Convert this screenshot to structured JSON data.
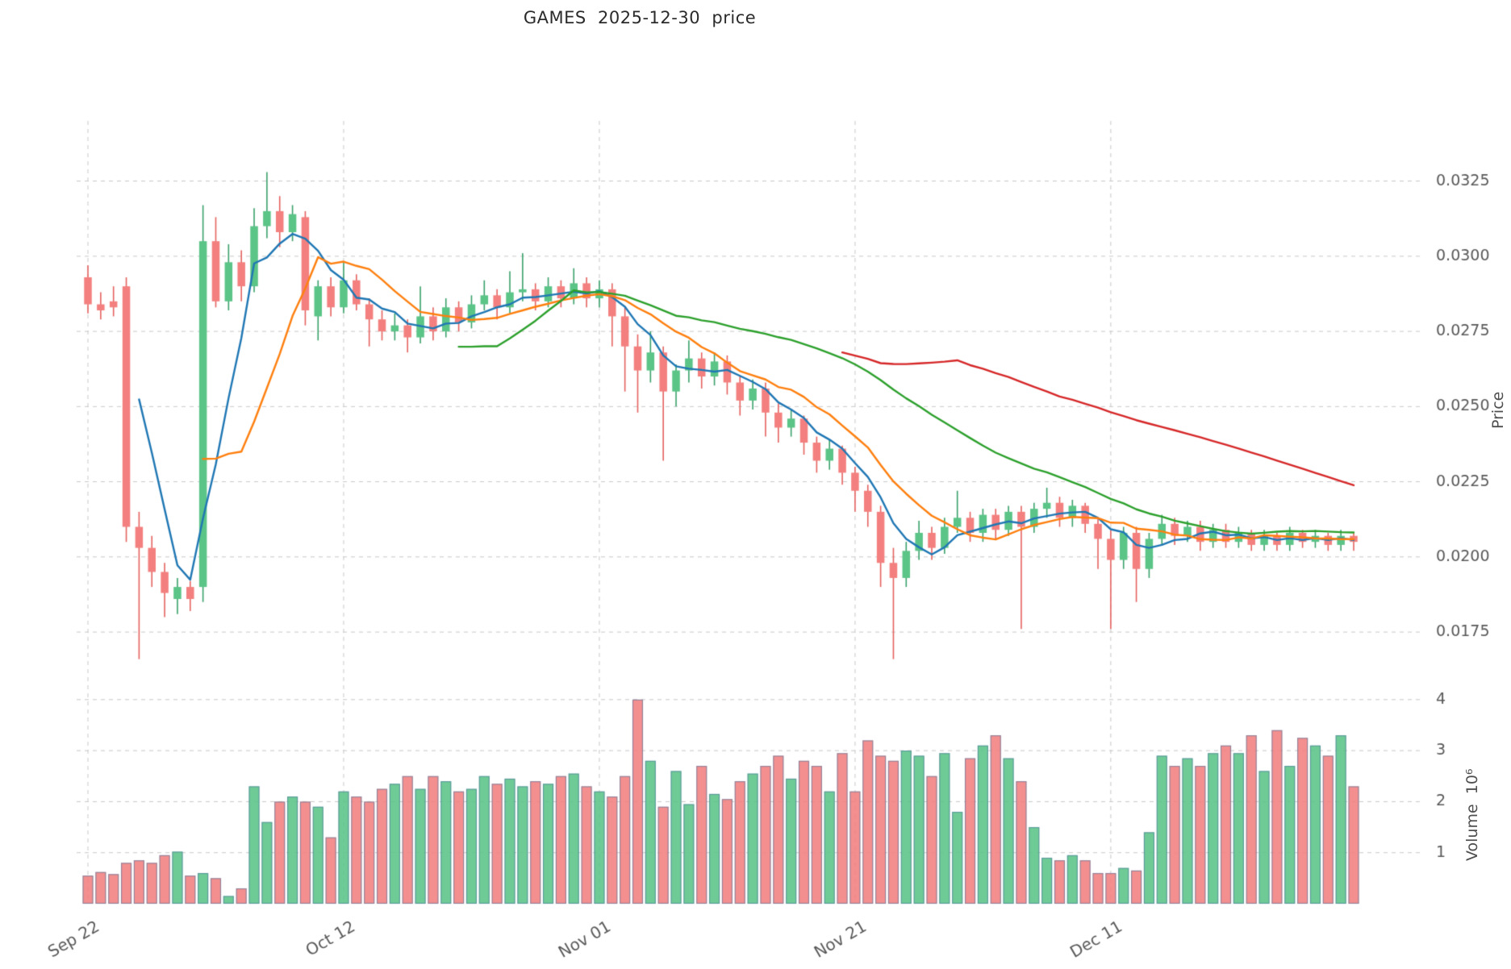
{
  "title": "GAMES  2025-12-30  price",
  "chart_data": {
    "type": "candlestick",
    "title": "GAMES  2025-12-30  price",
    "panels": [
      "price",
      "volume"
    ],
    "grid": "dashed",
    "ylabel_price": "Price",
    "ylabel_volume": "Volume  10⁶",
    "price_ticks": [
      0.0175,
      0.02,
      0.0225,
      0.025,
      0.0275,
      0.03,
      0.0325
    ],
    "price_ylim": [
      0.016,
      0.0345
    ],
    "volume_ticks": [
      1,
      2,
      3,
      4
    ],
    "volume_ylim": [
      0,
      4.25
    ],
    "x_tick_labels": [
      "Sep 22",
      "Oct 12",
      "Nov 01",
      "Nov 21",
      "Dec 11"
    ],
    "x_tick_indices": [
      0,
      20,
      40,
      60,
      80
    ],
    "ma_periods": [
      5,
      10,
      30,
      60
    ],
    "ma_colors": [
      "#1f77b4",
      "#ff7f0e",
      "#2ca02c",
      "#d62728"
    ],
    "up_fill": "#5bc487",
    "down_fill": "#f3807f",
    "up_wick": "#3aa26b",
    "down_wick": "#e5625f",
    "bar_edge": "#49759c",
    "grid_color": "#c9c9c9",
    "tick_color": "#595959",
    "ohlc": [
      [
        0.0293,
        0.0297,
        0.0281,
        0.0284
      ],
      [
        0.0284,
        0.0288,
        0.0279,
        0.0282
      ],
      [
        0.0285,
        0.029,
        0.028,
        0.0283
      ],
      [
        0.029,
        0.0293,
        0.0205,
        0.021
      ],
      [
        0.021,
        0.0215,
        0.0166,
        0.0203
      ],
      [
        0.0203,
        0.0207,
        0.019,
        0.0195
      ],
      [
        0.0195,
        0.0198,
        0.018,
        0.0188
      ],
      [
        0.0186,
        0.0193,
        0.0181,
        0.019
      ],
      [
        0.019,
        0.0192,
        0.0182,
        0.0186
      ],
      [
        0.019,
        0.0317,
        0.0185,
        0.0305
      ],
      [
        0.0305,
        0.0313,
        0.0283,
        0.0285
      ],
      [
        0.0285,
        0.0304,
        0.0282,
        0.0298
      ],
      [
        0.0298,
        0.0302,
        0.0285,
        0.029
      ],
      [
        0.029,
        0.0316,
        0.0288,
        0.031
      ],
      [
        0.031,
        0.0328,
        0.0306,
        0.0315
      ],
      [
        0.0315,
        0.032,
        0.0303,
        0.0308
      ],
      [
        0.0308,
        0.0317,
        0.0305,
        0.0314
      ],
      [
        0.0313,
        0.0315,
        0.0277,
        0.0282
      ],
      [
        0.028,
        0.0292,
        0.0272,
        0.029
      ],
      [
        0.029,
        0.0293,
        0.028,
        0.0283
      ],
      [
        0.0283,
        0.0298,
        0.0281,
        0.0292
      ],
      [
        0.0292,
        0.0294,
        0.0282,
        0.0284
      ],
      [
        0.0284,
        0.0286,
        0.027,
        0.0279
      ],
      [
        0.0279,
        0.0282,
        0.0272,
        0.0275
      ],
      [
        0.0275,
        0.0281,
        0.0272,
        0.0277
      ],
      [
        0.0277,
        0.0279,
        0.0268,
        0.0273
      ],
      [
        0.0273,
        0.029,
        0.0271,
        0.028
      ],
      [
        0.028,
        0.0283,
        0.0272,
        0.0275
      ],
      [
        0.0275,
        0.0286,
        0.0273,
        0.0283
      ],
      [
        0.0283,
        0.0285,
        0.0275,
        0.0278
      ],
      [
        0.0278,
        0.0287,
        0.0276,
        0.0284
      ],
      [
        0.0284,
        0.0292,
        0.0282,
        0.0287
      ],
      [
        0.0287,
        0.0289,
        0.0279,
        0.0283
      ],
      [
        0.0283,
        0.0295,
        0.0281,
        0.0288
      ],
      [
        0.0288,
        0.0301,
        0.0285,
        0.0289
      ],
      [
        0.0289,
        0.0291,
        0.0282,
        0.0285
      ],
      [
        0.0285,
        0.0293,
        0.0283,
        0.029
      ],
      [
        0.029,
        0.0292,
        0.0283,
        0.0286
      ],
      [
        0.0286,
        0.0296,
        0.0284,
        0.0291
      ],
      [
        0.0291,
        0.0293,
        0.0283,
        0.0286
      ],
      [
        0.0286,
        0.0292,
        0.0283,
        0.0289
      ],
      [
        0.0289,
        0.0291,
        0.027,
        0.028
      ],
      [
        0.028,
        0.0283,
        0.0255,
        0.027
      ],
      [
        0.027,
        0.0274,
        0.0248,
        0.0262
      ],
      [
        0.0262,
        0.0275,
        0.0258,
        0.0268
      ],
      [
        0.0268,
        0.027,
        0.0232,
        0.0255
      ],
      [
        0.0255,
        0.0264,
        0.025,
        0.0262
      ],
      [
        0.0262,
        0.0272,
        0.0258,
        0.0266
      ],
      [
        0.0266,
        0.0268,
        0.0256,
        0.026
      ],
      [
        0.026,
        0.0268,
        0.0257,
        0.0265
      ],
      [
        0.0265,
        0.0267,
        0.0254,
        0.0258
      ],
      [
        0.0258,
        0.026,
        0.0247,
        0.0252
      ],
      [
        0.0252,
        0.0259,
        0.0249,
        0.0256
      ],
      [
        0.0256,
        0.0258,
        0.024,
        0.0248
      ],
      [
        0.0248,
        0.0251,
        0.0238,
        0.0243
      ],
      [
        0.0243,
        0.0249,
        0.024,
        0.0246
      ],
      [
        0.0246,
        0.0247,
        0.0234,
        0.0238
      ],
      [
        0.0238,
        0.024,
        0.0228,
        0.0232
      ],
      [
        0.0232,
        0.0239,
        0.0229,
        0.0236
      ],
      [
        0.0236,
        0.0237,
        0.0224,
        0.0228
      ],
      [
        0.0228,
        0.023,
        0.0215,
        0.0222
      ],
      [
        0.0222,
        0.0224,
        0.021,
        0.0215
      ],
      [
        0.0215,
        0.0217,
        0.019,
        0.0198
      ],
      [
        0.0198,
        0.0203,
        0.0166,
        0.0193
      ],
      [
        0.0193,
        0.0205,
        0.019,
        0.0202
      ],
      [
        0.0202,
        0.0212,
        0.0199,
        0.0208
      ],
      [
        0.0208,
        0.021,
        0.0199,
        0.0203
      ],
      [
        0.0203,
        0.0213,
        0.0201,
        0.021
      ],
      [
        0.021,
        0.0222,
        0.0208,
        0.0213
      ],
      [
        0.0213,
        0.0215,
        0.0205,
        0.0208
      ],
      [
        0.0208,
        0.0216,
        0.0205,
        0.0214
      ],
      [
        0.0214,
        0.0216,
        0.0206,
        0.0209
      ],
      [
        0.0209,
        0.0217,
        0.0207,
        0.0215
      ],
      [
        0.0215,
        0.0217,
        0.0176,
        0.021
      ],
      [
        0.021,
        0.0218,
        0.0208,
        0.0216
      ],
      [
        0.0216,
        0.0223,
        0.0213,
        0.0218
      ],
      [
        0.0218,
        0.022,
        0.021,
        0.0213
      ],
      [
        0.0213,
        0.0219,
        0.021,
        0.0217
      ],
      [
        0.0217,
        0.0218,
        0.0208,
        0.0211
      ],
      [
        0.0211,
        0.0213,
        0.0196,
        0.0206
      ],
      [
        0.0206,
        0.0209,
        0.0176,
        0.0199
      ],
      [
        0.0199,
        0.021,
        0.0196,
        0.0208
      ],
      [
        0.0208,
        0.021,
        0.0185,
        0.0196
      ],
      [
        0.0196,
        0.0208,
        0.0193,
        0.0206
      ],
      [
        0.0206,
        0.0214,
        0.0204,
        0.0211
      ],
      [
        0.0211,
        0.0213,
        0.0204,
        0.0207
      ],
      [
        0.0207,
        0.0212,
        0.0205,
        0.021
      ],
      [
        0.021,
        0.0212,
        0.0202,
        0.0205
      ],
      [
        0.0205,
        0.0211,
        0.0203,
        0.0209
      ],
      [
        0.0209,
        0.0211,
        0.0203,
        0.0205
      ],
      [
        0.0205,
        0.021,
        0.0203,
        0.0208
      ],
      [
        0.0208,
        0.0209,
        0.0202,
        0.0204
      ],
      [
        0.0204,
        0.0209,
        0.0202,
        0.0207
      ],
      [
        0.0207,
        0.0208,
        0.0202,
        0.0204
      ],
      [
        0.0204,
        0.021,
        0.0202,
        0.0208
      ],
      [
        0.0208,
        0.0209,
        0.0203,
        0.0205
      ],
      [
        0.0205,
        0.0209,
        0.0203,
        0.0207
      ],
      [
        0.0207,
        0.0208,
        0.0202,
        0.0204
      ],
      [
        0.0204,
        0.0209,
        0.0202,
        0.0207
      ],
      [
        0.0207,
        0.0208,
        0.0202,
        0.0205
      ]
    ],
    "volume_millions": [
      0.55,
      0.62,
      0.58,
      0.8,
      0.85,
      0.8,
      0.95,
      1.02,
      0.55,
      0.6,
      0.5,
      0.15,
      0.3,
      2.3,
      1.6,
      2.0,
      2.1,
      2.0,
      1.9,
      1.3,
      2.2,
      2.1,
      2.0,
      2.25,
      2.35,
      2.5,
      2.25,
      2.5,
      2.4,
      2.2,
      2.25,
      2.5,
      2.35,
      2.45,
      2.3,
      2.4,
      2.35,
      2.5,
      2.55,
      2.3,
      2.2,
      2.1,
      2.5,
      4.0,
      2.8,
      1.9,
      2.6,
      1.95,
      2.7,
      2.15,
      2.05,
      2.4,
      2.55,
      2.7,
      2.9,
      2.45,
      2.8,
      2.7,
      2.2,
      2.95,
      2.2,
      3.2,
      2.9,
      2.8,
      3.0,
      2.9,
      2.5,
      2.95,
      1.8,
      2.85,
      3.1,
      3.3,
      2.85,
      2.4,
      1.5,
      0.9,
      0.85,
      0.95,
      0.85,
      0.6,
      0.6,
      0.7,
      0.65,
      1.4,
      2.9,
      2.7,
      2.85,
      2.7,
      2.95,
      3.1,
      2.95,
      3.3,
      2.6,
      3.4,
      2.7,
      3.25,
      3.1,
      2.9,
      3.3,
      2.3
    ]
  }
}
